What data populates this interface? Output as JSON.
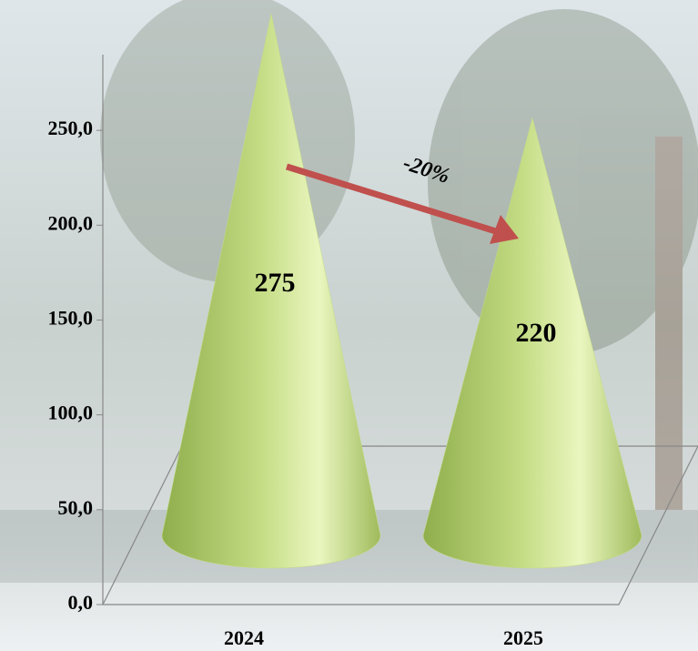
{
  "chart_data": {
    "type": "cone",
    "categories": [
      "2024",
      "2025"
    ],
    "values": [
      275,
      220
    ],
    "color": "#c4dc84",
    "ylim": [
      0,
      300
    ],
    "yticks": [
      {
        "value": 0,
        "label": "0,0"
      },
      {
        "value": 50,
        "label": "50,0"
      },
      {
        "value": 100,
        "label": "100,0"
      },
      {
        "value": 150,
        "label": "150,0"
      },
      {
        "value": 200,
        "label": "200,0"
      },
      {
        "value": 250,
        "label": "250,0"
      }
    ],
    "annotation": "-20%"
  }
}
